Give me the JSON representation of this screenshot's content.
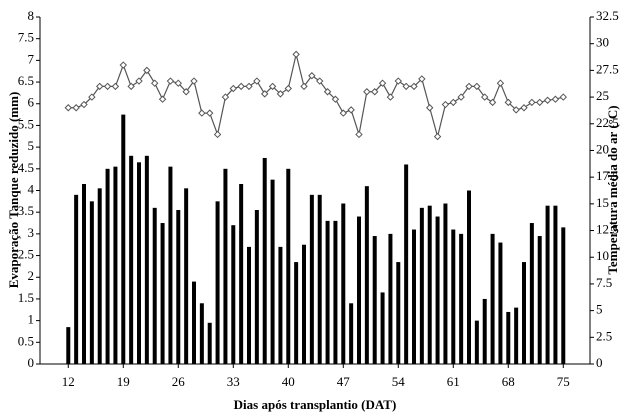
{
  "chart_data": {
    "type": "bar-line",
    "x_label": "Dias após transplantio  (DAT)",
    "y_label": "Evaporação Tanque reduzido  (mm)",
    "y2_label": "Temperatura  média do ar (°C)",
    "x": [
      12,
      13,
      14,
      15,
      16,
      17,
      18,
      19,
      20,
      21,
      22,
      23,
      24,
      25,
      26,
      27,
      28,
      29,
      30,
      31,
      32,
      33,
      34,
      35,
      36,
      37,
      38,
      39,
      40,
      41,
      42,
      43,
      44,
      45,
      46,
      47,
      48,
      49,
      50,
      51,
      52,
      53,
      54,
      55,
      56,
      57,
      58,
      59,
      60,
      61,
      62,
      63,
      64,
      65,
      66,
      67,
      68,
      69,
      70,
      71,
      72,
      73,
      74,
      75
    ],
    "xlim": [
      8.4,
      78.4
    ],
    "xticks": [
      12,
      19,
      26,
      33,
      40,
      47,
      54,
      61,
      68,
      75
    ],
    "ylim": [
      0,
      8
    ],
    "yticks": [
      0,
      0.5,
      1,
      1.5,
      2,
      2.5,
      3,
      3.5,
      4,
      4.5,
      5,
      5.5,
      6,
      6.5,
      7,
      7.5,
      8
    ],
    "y2lim": [
      0,
      32.5
    ],
    "y2ticks": [
      0,
      2.5,
      5,
      7.5,
      10,
      12.5,
      15,
      17.5,
      20,
      22.5,
      25,
      27.5,
      30,
      32.5
    ],
    "series": [
      {
        "type": "bar",
        "color": "#000000",
        "values": [
          0.85,
          3.9,
          4.15,
          3.75,
          4.05,
          4.5,
          4.55,
          5.75,
          4.8,
          4.65,
          4.8,
          3.6,
          3.25,
          4.55,
          3.55,
          4.05,
          1.9,
          1.4,
          0.95,
          3.75,
          4.5,
          3.2,
          4.15,
          2.7,
          3.55,
          4.75,
          4.25,
          2.7,
          4.5,
          2.35,
          2.75,
          3.9,
          3.9,
          3.3,
          3.3,
          3.7,
          1.4,
          3.4,
          4.1,
          2.95,
          1.65,
          3.0,
          2.35,
          4.6,
          3.1,
          3.6,
          3.65,
          3.4,
          3.7,
          3.1,
          3.0,
          4.0,
          1.0,
          1.5,
          3.0,
          2.8,
          1.2,
          1.3,
          2.35,
          3.25,
          2.95,
          3.65,
          3.65,
          3.15
        ]
      },
      {
        "type": "line",
        "axis": "y2",
        "color": "#555555",
        "values": [
          24,
          24,
          24.3,
          25,
          26,
          26,
          26,
          28,
          26,
          26.5,
          27.5,
          26.3,
          24.8,
          26.5,
          26.3,
          25.5,
          26.5,
          23.5,
          23.5,
          21.5,
          25,
          25.8,
          26,
          26,
          26.5,
          25.3,
          26,
          25.3,
          25.8,
          29,
          26,
          27,
          26.5,
          25.5,
          24.8,
          23.5,
          23.8,
          21.5,
          25.5,
          25.5,
          26.3,
          25,
          26.5,
          26,
          26,
          26.7,
          24,
          21.3,
          24.3,
          24.5,
          25,
          26,
          26,
          25,
          24.5,
          26.3,
          24.5,
          23.8,
          24,
          24.5,
          24.5,
          24.7,
          24.8,
          25
        ]
      }
    ]
  }
}
